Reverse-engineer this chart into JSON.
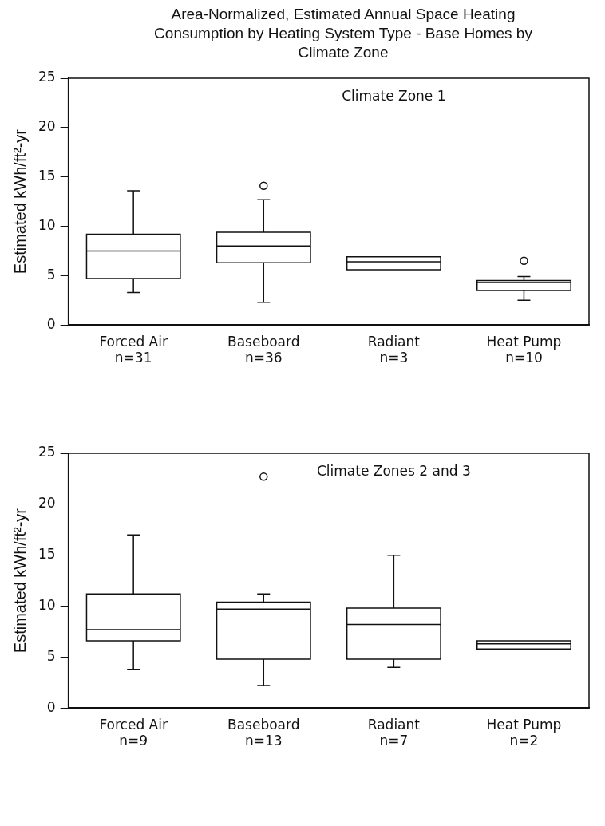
{
  "chart_data": [
    {
      "type": "box",
      "title": "Area-Normalized, Estimated Annual Space Heating Consumption by Heating System Type - Base Homes by Climate Zone",
      "subtitle": "Climate Zone 1",
      "ylabel": "Estimated kWh/ft²-yr",
      "categories": [
        "Forced Air\nn=31",
        "Baseboard\nn=36",
        "Radiant\nn=3",
        "Heat Pump\nn=10"
      ],
      "boxes": [
        {
          "low": 3.3,
          "q1": 4.7,
          "median": 7.5,
          "q3": 9.2,
          "high": 13.6
        },
        {
          "low": 2.3,
          "q1": 6.3,
          "median": 8.0,
          "q3": 9.4,
          "high": 12.7,
          "outliers": [
            14.1
          ]
        },
        {
          "low": 5.6,
          "q1": 5.6,
          "median": 6.4,
          "q3": 6.9,
          "high": 6.9
        },
        {
          "low": 2.5,
          "q1": 3.5,
          "median": 4.3,
          "q3": 4.5,
          "high": 4.9,
          "outliers": [
            6.5
          ]
        }
      ],
      "ylim": [
        0,
        25
      ],
      "yticks": [
        0,
        5,
        10,
        15,
        20,
        25
      ],
      "grid": false,
      "legend": false
    },
    {
      "type": "box",
      "subtitle": "Climate Zones 2 and 3",
      "ylabel": "Estimated kWh/ft²-yr",
      "categories": [
        "Forced Air\nn=9",
        "Baseboard\nn=13",
        "Radiant\nn=7",
        "Heat Pump\nn=2"
      ],
      "boxes": [
        {
          "low": 3.8,
          "q1": 6.6,
          "median": 7.7,
          "q3": 11.2,
          "high": 17.0
        },
        {
          "low": 2.2,
          "q1": 4.8,
          "median": 9.7,
          "q3": 10.4,
          "high": 11.2,
          "outliers": [
            22.7
          ]
        },
        {
          "low": 4.0,
          "q1": 4.8,
          "median": 8.2,
          "q3": 9.8,
          "high": 15.0
        },
        {
          "low": 5.8,
          "q1": 5.8,
          "median": 6.3,
          "q3": 6.6,
          "high": 6.6
        }
      ],
      "ylim": [
        0,
        25
      ],
      "yticks": [
        0,
        5,
        10,
        15,
        20,
        25
      ],
      "grid": false,
      "legend": false
    }
  ]
}
